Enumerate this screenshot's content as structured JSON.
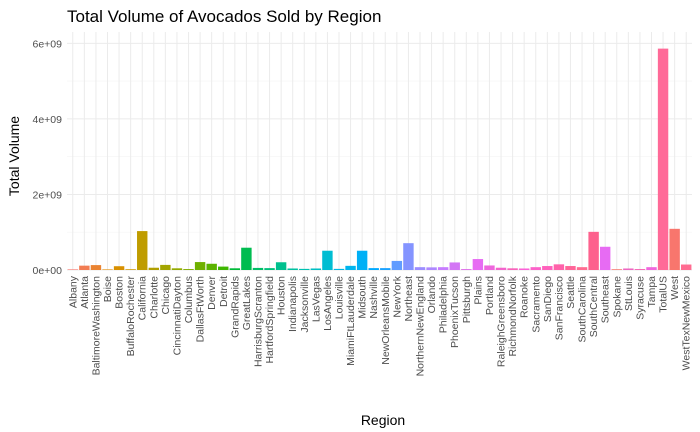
{
  "chart_data": {
    "type": "bar",
    "title": "Total Volume of Avocados Sold by Region",
    "xlabel": "Region",
    "ylabel": "Total Volume",
    "ylim": [
      0,
      6300000000
    ],
    "yticks": [
      0,
      2000000000,
      4000000000,
      6000000000
    ],
    "ytick_labels": [
      "0e+00",
      "2e+09",
      "4e+09",
      "6e+09"
    ],
    "grid": true,
    "legend": "none",
    "categories": [
      "Albany",
      "Atlanta",
      "BaltimoreWashington",
      "Boise",
      "Boston",
      "BuffaloRochester",
      "California",
      "Charlotte",
      "Chicago",
      "CincinnatiDayton",
      "Columbus",
      "DallasFtWorth",
      "Denver",
      "Detroit",
      "GrandRapids",
      "GreatLakes",
      "HarrisburgScranton",
      "HartfordSpringfield",
      "Houston",
      "Indianapolis",
      "Jacksonville",
      "LasVegas",
      "LosAngeles",
      "Louisville",
      "MiamiFtLauderdale",
      "Midsouth",
      "Nashville",
      "NewOrleansMobile",
      "NewYork",
      "Northeast",
      "NorthernNewEngland",
      "Orlando",
      "Philadelphia",
      "PhoenixTucson",
      "Pittsburgh",
      "Plains",
      "Portland",
      "RaleighGreensboro",
      "RichmondNorfolk",
      "Roanoke",
      "Sacramento",
      "SanDiego",
      "SanFrancisco",
      "Seattle",
      "SouthCarolina",
      "SouthCentral",
      "Southeast",
      "Spokane",
      "StLouis",
      "Syracuse",
      "Tampa",
      "TotalUS",
      "West",
      "WestTexNewMexico"
    ],
    "values": [
      16000000,
      115000000,
      130000000,
      15000000,
      100000000,
      20000000,
      1030000000,
      60000000,
      135000000,
      45000000,
      25000000,
      210000000,
      165000000,
      90000000,
      45000000,
      590000000,
      55000000,
      50000000,
      205000000,
      40000000,
      30000000,
      40000000,
      510000000,
      30000000,
      110000000,
      510000000,
      50000000,
      50000000,
      240000000,
      710000000,
      75000000,
      70000000,
      75000000,
      200000000,
      25000000,
      290000000,
      120000000,
      60000000,
      45000000,
      40000000,
      75000000,
      105000000,
      150000000,
      105000000,
      75000000,
      1010000000,
      615000000,
      20000000,
      40000000,
      25000000,
      75000000,
      5860000000,
      1090000000,
      145000000
    ],
    "colors": [
      "#F8766D",
      "#F27D53",
      "#EA8331",
      "#E18A00",
      "#D89000",
      "#CC9600",
      "#BF9C00",
      "#B09F00",
      "#A3A500",
      "#93AA00",
      "#82AD00",
      "#6FB000",
      "#5BB300",
      "#3EB700",
      "#00BA38",
      "#00BC50",
      "#00BE66",
      "#00C07B",
      "#00C08E",
      "#00C1A1",
      "#00C1B2",
      "#00BFC4",
      "#00BDD2",
      "#00B9E3",
      "#00B5EE",
      "#00B0F6",
      "#00A9FF",
      "#1AA2FF",
      "#619CFF",
      "#8494FF",
      "#9C8DFF",
      "#AE87FF",
      "#C77CFF",
      "#D376F5",
      "#DE71EA",
      "#E76BF3",
      "#EE67DD",
      "#F364CC",
      "#F863BB",
      "#FB61D7",
      "#FC61C9",
      "#FF61BC",
      "#FF62AA",
      "#FF6598",
      "#FF6C91",
      "#FD618D",
      "#E76BF3",
      "#F8766D",
      "#ED67C2",
      "#F564B4",
      "#F066DC",
      "#FF6A98",
      "#F8766D",
      "#FF6C91"
    ]
  }
}
